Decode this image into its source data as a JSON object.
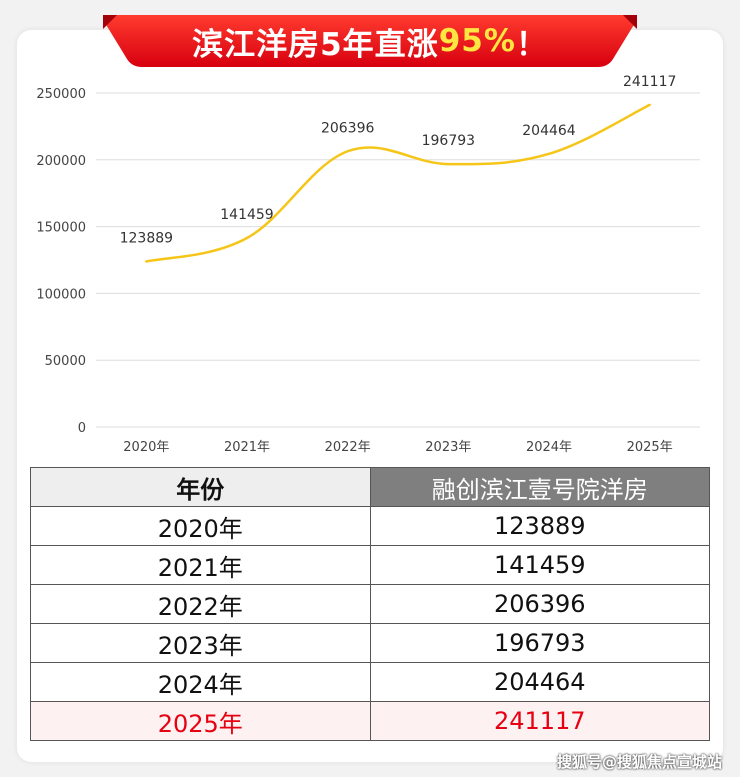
{
  "banner": {
    "prefix": "滨江洋房5年直涨",
    "highlight": "95%",
    "suffix": "！",
    "colors": {
      "top": "#ff3b2f",
      "bottom": "#d7000f",
      "highlight": "#ffe640"
    }
  },
  "chart_data": {
    "type": "line",
    "categories": [
      "2020年",
      "2021年",
      "2022年",
      "2023年",
      "2024年",
      "2025年"
    ],
    "series": [
      {
        "values": [
          123889,
          141459,
          206396,
          196793,
          204464,
          241117
        ],
        "color": "#f5c518"
      }
    ],
    "yticks": [
      "0",
      "50000",
      "100000",
      "150000",
      "200000",
      "250000"
    ],
    "ylim": [
      0,
      250000
    ],
    "grid": true,
    "smooth": true
  },
  "table": {
    "headers": [
      "年份",
      "融创滨江壹号院洋房"
    ],
    "rows": [
      [
        "2020年",
        "123889"
      ],
      [
        "2021年",
        "141459"
      ],
      [
        "2022年",
        "206396"
      ],
      [
        "2023年",
        "196793"
      ],
      [
        "2024年",
        "204464"
      ],
      [
        "2025年",
        "241117"
      ]
    ],
    "highlight_row": 5,
    "highlight_color": "#e60012"
  },
  "watermark": "搜狐号@搜狐焦点宣城站"
}
